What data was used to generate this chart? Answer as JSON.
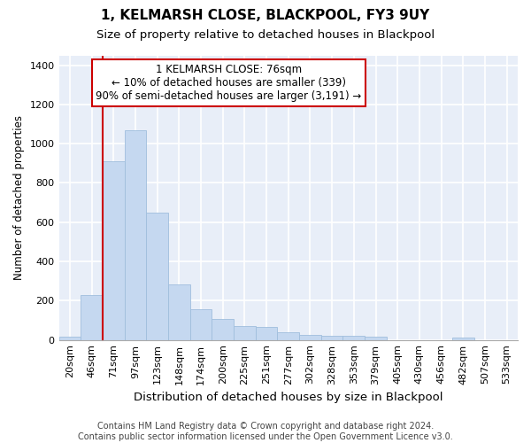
{
  "title1": "1, KELMARSH CLOSE, BLACKPOOL, FY3 9UY",
  "title2": "Size of property relative to detached houses in Blackpool",
  "xlabel": "Distribution of detached houses by size in Blackpool",
  "ylabel": "Number of detached properties",
  "footer1": "Contains HM Land Registry data © Crown copyright and database right 2024.",
  "footer2": "Contains public sector information licensed under the Open Government Licence v3.0.",
  "bar_labels": [
    "20sqm",
    "46sqm",
    "71sqm",
    "97sqm",
    "123sqm",
    "148sqm",
    "174sqm",
    "200sqm",
    "225sqm",
    "251sqm",
    "277sqm",
    "302sqm",
    "328sqm",
    "353sqm",
    "379sqm",
    "405sqm",
    "430sqm",
    "456sqm",
    "482sqm",
    "507sqm",
    "533sqm"
  ],
  "bar_values": [
    18,
    228,
    910,
    1068,
    650,
    285,
    158,
    108,
    70,
    68,
    40,
    27,
    22,
    22,
    15,
    0,
    0,
    0,
    10,
    0,
    0
  ],
  "bar_color": "#c5d8f0",
  "bar_edge_color": "#a0bedd",
  "bg_color": "#e8eef8",
  "grid_color": "#ffffff",
  "annotation_text": "1 KELMARSH CLOSE: 76sqm\n← 10% of detached houses are smaller (339)\n90% of semi-detached houses are larger (3,191) →",
  "vline_color": "#cc0000",
  "annotation_box_color": "#cc0000",
  "ylim": [
    0,
    1450
  ],
  "yticks": [
    0,
    200,
    400,
    600,
    800,
    1000,
    1200,
    1400
  ],
  "vline_position": 2.0,
  "title1_fontsize": 11,
  "title2_fontsize": 9.5,
  "annot_fontsize": 8.5,
  "ylabel_fontsize": 8.5,
  "xlabel_fontsize": 9.5,
  "tick_fontsize": 8,
  "footer_fontsize": 7
}
